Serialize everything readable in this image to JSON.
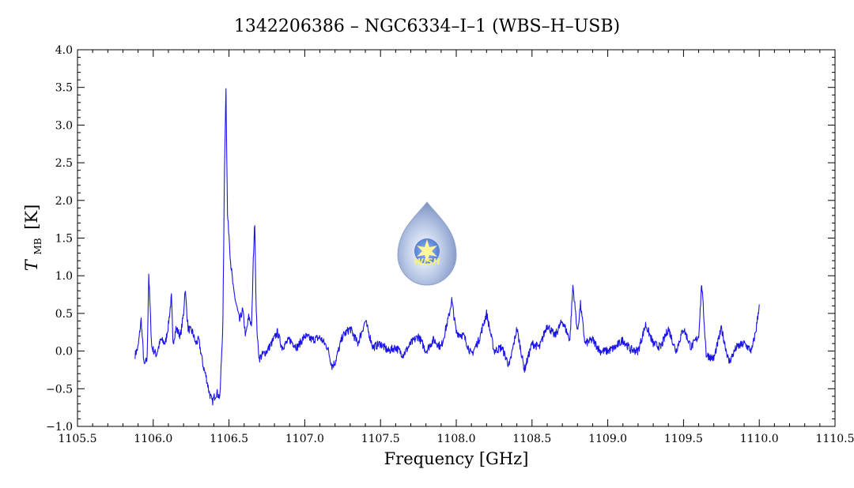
{
  "chart_data": {
    "type": "line",
    "title": "1342206386 – NGC6334–I–1 (WBS–H–USB)",
    "xlabel": "Frequency [GHz]",
    "ylabel": {
      "symbol": "T",
      "subscript": "MB",
      "unit": "[K]"
    },
    "xlim": [
      1105.5,
      1110.5
    ],
    "ylim": [
      -1.0,
      4.0
    ],
    "x_ticks": [
      1105.5,
      1106.0,
      1106.5,
      1107.0,
      1107.5,
      1108.0,
      1108.5,
      1109.0,
      1109.5,
      1110.0,
      1110.5
    ],
    "x_tick_labels": [
      "1105.5",
      "1106.0",
      "1106.5",
      "1107.0",
      "1107.5",
      "1108.0",
      "1108.5",
      "1109.0",
      "1109.5",
      "1110.0",
      "1110.5"
    ],
    "y_ticks": [
      -1.0,
      -0.5,
      0.0,
      0.5,
      1.0,
      1.5,
      2.0,
      2.5,
      3.0,
      3.5,
      4.0
    ],
    "y_tick_labels": [
      "−1.0",
      "−0.5",
      "0.0",
      "0.5",
      "1.0",
      "1.5",
      "2.0",
      "2.5",
      "3.0",
      "3.5",
      "4.0"
    ],
    "grid": false,
    "series": [
      {
        "color": "#1a14e8",
        "x": [
          1105.88,
          1105.9,
          1105.92,
          1105.94,
          1105.96,
          1105.97,
          1105.99,
          1106.02,
          1106.05,
          1106.08,
          1106.1,
          1106.12,
          1106.13,
          1106.15,
          1106.18,
          1106.2,
          1106.21,
          1106.23,
          1106.26,
          1106.28,
          1106.3,
          1106.33,
          1106.35,
          1106.37,
          1106.39,
          1106.4,
          1106.42,
          1106.44,
          1106.46,
          1106.47,
          1106.48,
          1106.49,
          1106.5,
          1106.51,
          1106.53,
          1106.55,
          1106.57,
          1106.59,
          1106.61,
          1106.63,
          1106.65,
          1106.66,
          1106.67,
          1106.68,
          1106.69,
          1106.7,
          1106.72,
          1106.75,
          1106.78,
          1106.82,
          1106.85,
          1106.9,
          1106.95,
          1107.0,
          1107.05,
          1107.1,
          1107.15,
          1107.18,
          1107.2,
          1107.25,
          1107.3,
          1107.35,
          1107.4,
          1107.45,
          1107.5,
          1107.55,
          1107.6,
          1107.65,
          1107.7,
          1107.75,
          1107.8,
          1107.85,
          1107.9,
          1107.95,
          1107.97,
          1108.0,
          1108.05,
          1108.1,
          1108.15,
          1108.2,
          1108.25,
          1108.3,
          1108.35,
          1108.4,
          1108.45,
          1108.5,
          1108.55,
          1108.6,
          1108.65,
          1108.7,
          1108.75,
          1108.77,
          1108.8,
          1108.82,
          1108.85,
          1108.9,
          1108.95,
          1109.0,
          1109.05,
          1109.1,
          1109.15,
          1109.2,
          1109.25,
          1109.3,
          1109.35,
          1109.4,
          1109.45,
          1109.5,
          1109.55,
          1109.6,
          1109.62,
          1109.65,
          1109.7,
          1109.75,
          1109.8,
          1109.85,
          1109.9,
          1109.95,
          1109.98,
          1110.0
        ],
        "y": [
          -0.05,
          0.05,
          0.42,
          -0.2,
          -0.1,
          1.03,
          0.05,
          -0.05,
          0.15,
          0.1,
          0.35,
          0.72,
          0.1,
          0.3,
          0.2,
          0.5,
          0.83,
          0.3,
          0.25,
          0.1,
          0.15,
          -0.2,
          -0.35,
          -0.55,
          -0.68,
          -0.62,
          -0.55,
          -0.62,
          0.4,
          2.4,
          3.52,
          1.8,
          1.55,
          1.2,
          0.8,
          0.6,
          0.4,
          0.55,
          0.2,
          0.45,
          0.35,
          1.2,
          1.72,
          0.5,
          0.1,
          -0.1,
          -0.05,
          0.0,
          0.1,
          0.25,
          0.05,
          0.15,
          0.05,
          0.2,
          0.15,
          0.18,
          0.05,
          -0.2,
          -0.15,
          0.2,
          0.3,
          0.1,
          0.4,
          0.05,
          0.1,
          0.0,
          0.05,
          -0.05,
          0.1,
          0.2,
          0.0,
          0.15,
          0.05,
          0.45,
          0.68,
          0.25,
          0.2,
          -0.05,
          0.15,
          0.5,
          0.0,
          0.05,
          -0.2,
          0.3,
          -0.25,
          0.1,
          0.05,
          0.35,
          0.2,
          0.4,
          0.15,
          0.87,
          0.25,
          0.62,
          0.1,
          0.15,
          0.0,
          0.0,
          0.05,
          0.15,
          0.02,
          0.0,
          0.35,
          0.1,
          0.05,
          0.3,
          0.0,
          0.3,
          0.05,
          0.2,
          0.9,
          -0.05,
          -0.1,
          0.3,
          -0.15,
          0.05,
          0.1,
          0.0,
          0.3,
          0.62
        ]
      }
    ]
  },
  "logo": {
    "text": "WISH"
  }
}
